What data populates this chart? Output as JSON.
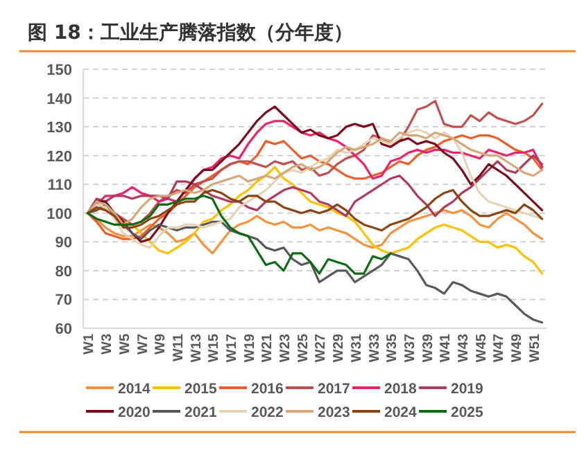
{
  "chart_data": {
    "type": "line",
    "title": "图 18：工业生产腾落指数（分年度）",
    "categories": [
      "W1",
      null,
      "W3",
      null,
      "W5",
      null,
      "W7",
      null,
      "W9",
      null,
      "W11",
      null,
      "W13",
      null,
      "W15",
      null,
      "W17",
      null,
      "W19",
      null,
      "W21",
      null,
      "W23",
      null,
      "W25",
      null,
      "W27",
      null,
      "W29",
      null,
      "W31",
      null,
      "W33",
      null,
      "W35",
      null,
      "W37",
      null,
      "W39",
      null,
      "W41",
      null,
      "W43",
      null,
      "W45",
      null,
      "W47",
      null,
      "W49",
      null,
      "W51",
      null
    ],
    "ylim": [
      60,
      150
    ],
    "yticks": [
      60,
      70,
      80,
      90,
      100,
      110,
      120,
      130,
      140,
      150
    ],
    "grid": "y",
    "legend": "bottom",
    "line_style": "solid",
    "marker": "none",
    "series": [
      {
        "name": "2014",
        "color": "#f5923e",
        "values": [
          100,
          98,
          95,
          93,
          92,
          92,
          94,
          96,
          95,
          93,
          90,
          91,
          93,
          89,
          86,
          90,
          94,
          96,
          97,
          99,
          97,
          96,
          97,
          95,
          95,
          96,
          94,
          95,
          94,
          93,
          91,
          89,
          88,
          89,
          93,
          95,
          97,
          98,
          99,
          100,
          101,
          100,
          101,
          99,
          96,
          95,
          98,
          100,
          98,
          96,
          93,
          91
        ]
      },
      {
        "name": "2015",
        "color": "#ffc000",
        "values": [
          100,
          101,
          102,
          99,
          97,
          96,
          93,
          90,
          87,
          86,
          88,
          90,
          93,
          97,
          98,
          101,
          103,
          106,
          108,
          111,
          113,
          116,
          112,
          110,
          107,
          104,
          103,
          102,
          100,
          99,
          97,
          93,
          89,
          87,
          86,
          87,
          88,
          91,
          93,
          95,
          96,
          95,
          94,
          92,
          90,
          90,
          88,
          89,
          88,
          85,
          83,
          79
        ]
      },
      {
        "name": "2016",
        "color": "#ed5d2a",
        "values": [
          100,
          97,
          93,
          92,
          91,
          91,
          92,
          95,
          98,
          100,
          103,
          106,
          109,
          111,
          113,
          115,
          117,
          118,
          117,
          120,
          125,
          124,
          125,
          122,
          119,
          120,
          118,
          117,
          115,
          113,
          112,
          112,
          113,
          114,
          116,
          118,
          117,
          120,
          122,
          123,
          125,
          126,
          127,
          126,
          127,
          127,
          126,
          124,
          122,
          121,
          119,
          115
        ]
      },
      {
        "name": "2017",
        "color": "#c0504d",
        "values": [
          100,
          103,
          102,
          100,
          98,
          96,
          97,
          100,
          104,
          106,
          108,
          107,
          110,
          111,
          112,
          115,
          117,
          118,
          118,
          117,
          116,
          118,
          117,
          118,
          115,
          116,
          113,
          114,
          117,
          119,
          120,
          122,
          127,
          126,
          124,
          125,
          130,
          136,
          137,
          139,
          131,
          130,
          130,
          134,
          132,
          135,
          133,
          132,
          131,
          132,
          134,
          138
        ]
      },
      {
        "name": "2018",
        "color": "#f0216b",
        "values": [
          100,
          103,
          106,
          106,
          107,
          109,
          107,
          106,
          104,
          105,
          104,
          108,
          112,
          115,
          116,
          119,
          120,
          119,
          124,
          128,
          131,
          132,
          132,
          130,
          128,
          127,
          128,
          126,
          125,
          123,
          120,
          117,
          112,
          113,
          118,
          119,
          121,
          122,
          121,
          122,
          122,
          121,
          121,
          120,
          119,
          122,
          121,
          120,
          121,
          121,
          122,
          116
        ]
      },
      {
        "name": "2019",
        "color": "#b03a5b",
        "values": [
          100,
          105,
          104,
          106,
          106,
          105,
          106,
          106,
          106,
          105,
          111,
          111,
          110,
          108,
          106,
          105,
          104,
          104,
          102,
          101,
          104,
          106,
          108,
          109,
          108,
          107,
          104,
          103,
          101,
          99,
          104,
          106,
          108,
          110,
          112,
          113,
          110,
          106,
          103,
          99,
          102,
          104,
          107,
          109,
          112,
          115,
          118,
          115,
          114,
          117,
          120,
          117
        ]
      },
      {
        "name": "2020",
        "color": "#7a0c1e",
        "values": [
          100,
          104,
          104,
          100,
          97,
          93,
          90,
          91,
          95,
          100,
          104,
          108,
          112,
          115,
          115,
          118,
          121,
          124,
          128,
          132,
          135,
          137,
          134,
          131,
          128,
          129,
          127,
          126,
          127,
          130,
          131,
          130,
          131,
          124,
          123,
          125,
          126,
          124,
          125,
          124,
          121,
          119,
          115,
          110,
          113,
          117,
          115,
          113,
          110,
          107,
          104,
          101
        ]
      },
      {
        "name": "2021",
        "color": "#595959",
        "values": [
          100,
          101,
          103,
          100,
          96,
          93,
          91,
          94,
          96,
          95,
          94,
          95,
          95,
          96,
          97,
          97,
          94,
          93,
          92,
          91,
          88,
          87,
          88,
          84,
          82,
          83,
          76,
          78,
          80,
          80,
          76,
          78,
          80,
          82,
          86,
          85,
          84,
          80,
          75,
          74,
          72,
          76,
          75,
          73,
          72,
          71,
          72,
          71,
          68,
          65,
          63,
          62
        ]
      },
      {
        "name": "2022",
        "color": "#e6d2b5",
        "values": [
          100,
          103,
          102,
          98,
          93,
          91,
          89,
          88,
          92,
          95,
          95,
          96,
          96,
          95,
          96,
          97,
          98,
          102,
          104,
          106,
          108,
          111,
          114,
          115,
          114,
          116,
          118,
          119,
          122,
          121,
          122,
          124,
          126,
          125,
          124,
          126,
          128,
          129,
          128,
          126,
          128,
          126,
          121,
          113,
          107,
          104,
          103,
          102,
          101,
          100,
          99,
          98
        ]
      },
      {
        "name": "2023",
        "color": "#d4a878",
        "values": [
          100,
          104,
          103,
          100,
          96,
          98,
          102,
          105,
          106,
          106,
          107,
          108,
          107,
          108,
          110,
          111,
          112,
          113,
          111,
          112,
          113,
          112,
          114,
          116,
          117,
          115,
          116,
          118,
          121,
          123,
          122,
          123,
          124,
          126,
          125,
          128,
          127,
          127,
          126,
          128,
          127,
          126,
          124,
          122,
          121,
          120,
          120,
          118,
          116,
          114,
          113,
          115
        ]
      },
      {
        "name": "2024",
        "color": "#8b4513",
        "values": [
          100,
          102,
          101,
          99,
          95,
          95,
          96,
          98,
          99,
          101,
          103,
          104,
          104,
          107,
          108,
          107,
          105,
          104,
          106,
          106,
          104,
          104,
          102,
          101,
          100,
          101,
          100,
          101,
          103,
          101,
          98,
          96,
          95,
          94,
          96,
          97,
          98,
          100,
          102,
          105,
          107,
          108,
          104,
          101,
          99,
          99,
          100,
          101,
          100,
          103,
          101,
          98
        ]
      },
      {
        "name": "2025",
        "color": "#0d6b12",
        "values": [
          100,
          98,
          97,
          96,
          96,
          96,
          97,
          99,
          103,
          103,
          104,
          105,
          105,
          106,
          105,
          99,
          95,
          93,
          92,
          87,
          82,
          83,
          80,
          86,
          86,
          83,
          79,
          84,
          83,
          82,
          79,
          79,
          85,
          84,
          86,
          null,
          null,
          null,
          null,
          null,
          null,
          null,
          null,
          null,
          null,
          null,
          null,
          null,
          null,
          null,
          null,
          null
        ]
      }
    ]
  }
}
